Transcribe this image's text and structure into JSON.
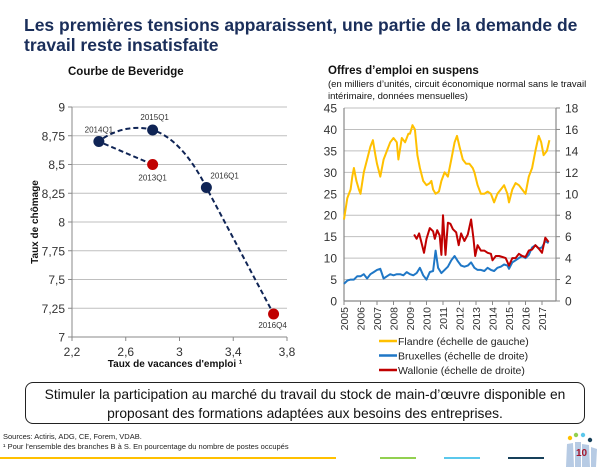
{
  "page": {
    "title": "Les premières tensions apparaissent, une partie de la demande de travail reste insatisfaite",
    "callout": "Stimuler la participation au marché du travail du stock de main-d’œuvre disponible en proposant des formations adaptées aux besoins des entreprises.",
    "sources": "Sources: Actiris, ADG, CE, Forem, VDAB.",
    "footnote": "¹ Pour l’ensemble des branches B à S. En pourcentage du nombre de postes occupés",
    "page_number": "10",
    "colors": {
      "title": "#1a2e5a",
      "accent_yellow": "#ffc000",
      "accent_green": "#92d050",
      "accent_cyan": "#5bc8ec",
      "accent_dark": "#17405a",
      "page_number": "#a3142b"
    }
  },
  "chart_data": [
    {
      "type": "scatter",
      "title": "Courbe de Beveridge",
      "xlabel": "Taux de vacances d'emploi ¹",
      "ylabel": "Taux de chômage",
      "xlim": [
        2.2,
        3.8
      ],
      "ylim": [
        7,
        9
      ],
      "xticks": [
        "2,2",
        "2,6",
        "3",
        "3,4",
        "3,8"
      ],
      "xtick_values": [
        2.2,
        2.6,
        3.0,
        3.4,
        3.8
      ],
      "yticks": [
        "7",
        "7,25",
        "7,5",
        "7,75",
        "8",
        "8,25",
        "8,5",
        "8,75",
        "9"
      ],
      "ytick_values": [
        7,
        7.25,
        7.5,
        7.75,
        8,
        8.25,
        8.5,
        8.75,
        9
      ],
      "grid": "horizontal",
      "connector": "dashed",
      "points": [
        {
          "label": "2013Q1",
          "x": 2.8,
          "y": 8.5,
          "color": "#c00000"
        },
        {
          "label": "2014Q1",
          "x": 2.4,
          "y": 8.7,
          "color": "#0f2455"
        },
        {
          "label": "2015Q1",
          "x": 2.8,
          "y": 8.8,
          "color": "#0f2455"
        },
        {
          "label": "2016Q1",
          "x": 3.2,
          "y": 8.3,
          "color": "#0f2455"
        },
        {
          "label": "2016Q4",
          "x": 3.7,
          "y": 7.2,
          "color": "#c00000"
        }
      ]
    },
    {
      "type": "line",
      "title": "Offres d’emploi en suspens",
      "subtitle": "(en milliers d’unités, circuit économique normal sans le travail intérimaire, données mensuelles)",
      "x_categories": [
        "2005",
        "2006",
        "2007",
        "2008",
        "2009",
        "2010",
        "2011",
        "2012",
        "2013",
        "2014",
        "2015",
        "2016",
        "2017"
      ],
      "xlim": [
        2005,
        2018.2
      ],
      "ylim_left": [
        0,
        45
      ],
      "ylim_right": [
        0,
        18
      ],
      "yticks_left": [
        "0",
        "5",
        "10",
        "15",
        "20",
        "25",
        "30",
        "35",
        "40",
        "45"
      ],
      "yticks_right": [
        "0",
        "2",
        "4",
        "6",
        "8",
        "10",
        "12",
        "14",
        "16",
        "18"
      ],
      "grid": "horizontal",
      "legend_position": "bottom",
      "series": [
        {
          "name": "Flandre (échelle de gauche)",
          "axis": "left",
          "color": "#ffc000",
          "points": [
            [
              2005.0,
              19
            ],
            [
              2005.2,
              24
            ],
            [
              2005.4,
              26
            ],
            [
              2005.5,
              29
            ],
            [
              2005.6,
              31
            ],
            [
              2005.75,
              28
            ],
            [
              2005.9,
              26
            ],
            [
              2006.0,
              25
            ],
            [
              2006.2,
              30
            ],
            [
              2006.4,
              33
            ],
            [
              2006.6,
              36
            ],
            [
              2006.75,
              37.5
            ],
            [
              2006.9,
              34
            ],
            [
              2007.0,
              32
            ],
            [
              2007.2,
              29
            ],
            [
              2007.4,
              33
            ],
            [
              2007.6,
              35
            ],
            [
              2007.8,
              37
            ],
            [
              2008.0,
              38
            ],
            [
              2008.2,
              37
            ],
            [
              2008.3,
              33
            ],
            [
              2008.5,
              38
            ],
            [
              2008.7,
              37
            ],
            [
              2008.9,
              39
            ],
            [
              2009.0,
              39
            ],
            [
              2009.15,
              41
            ],
            [
              2009.3,
              40
            ],
            [
              2009.45,
              34
            ],
            [
              2009.6,
              31
            ],
            [
              2009.8,
              28
            ],
            [
              2010.0,
              27
            ],
            [
              2010.2,
              27.5
            ],
            [
              2010.3,
              28
            ],
            [
              2010.4,
              26
            ],
            [
              2010.55,
              25
            ],
            [
              2010.75,
              25.5
            ],
            [
              2010.9,
              28
            ],
            [
              2011.1,
              30
            ],
            [
              2011.3,
              29
            ],
            [
              2011.5,
              33
            ],
            [
              2011.7,
              37
            ],
            [
              2011.85,
              38.5
            ],
            [
              2012.0,
              36
            ],
            [
              2012.2,
              33
            ],
            [
              2012.4,
              32
            ],
            [
              2012.6,
              32
            ],
            [
              2012.8,
              31
            ],
            [
              2012.9,
              30
            ],
            [
              2013.1,
              27
            ],
            [
              2013.3,
              25
            ],
            [
              2013.5,
              25
            ],
            [
              2013.7,
              25.5
            ],
            [
              2013.9,
              25
            ],
            [
              2014.1,
              23
            ],
            [
              2014.3,
              25
            ],
            [
              2014.5,
              26
            ],
            [
              2014.7,
              27
            ],
            [
              2014.9,
              25
            ],
            [
              2015.0,
              23
            ],
            [
              2015.2,
              26
            ],
            [
              2015.4,
              27.5
            ],
            [
              2015.6,
              27
            ],
            [
              2015.8,
              26
            ],
            [
              2016.0,
              25
            ],
            [
              2016.2,
              29
            ],
            [
              2016.4,
              31
            ],
            [
              2016.6,
              35
            ],
            [
              2016.8,
              38.5
            ],
            [
              2016.95,
              37
            ],
            [
              2017.1,
              34
            ],
            [
              2017.3,
              35
            ],
            [
              2017.45,
              37.5
            ]
          ]
        },
        {
          "name": "Bruxelles (échelle de droite)",
          "axis": "right",
          "color": "#1f77c6",
          "points": [
            [
              2005.0,
              1.6
            ],
            [
              2005.2,
              1.9
            ],
            [
              2005.4,
              2.0
            ],
            [
              2005.6,
              2.0
            ],
            [
              2005.8,
              2.3
            ],
            [
              2006.0,
              2.3
            ],
            [
              2006.2,
              2.5
            ],
            [
              2006.4,
              2.1
            ],
            [
              2006.6,
              2.5
            ],
            [
              2006.8,
              2.7
            ],
            [
              2007.0,
              2.9
            ],
            [
              2007.2,
              3.0
            ],
            [
              2007.4,
              2.1
            ],
            [
              2007.6,
              2.3
            ],
            [
              2007.8,
              2.5
            ],
            [
              2008.0,
              2.4
            ],
            [
              2008.2,
              2.5
            ],
            [
              2008.4,
              2.5
            ],
            [
              2008.6,
              2.4
            ],
            [
              2008.8,
              2.7
            ],
            [
              2009.0,
              2.5
            ],
            [
              2009.2,
              2.4
            ],
            [
              2009.4,
              2.6
            ],
            [
              2009.6,
              3.1
            ],
            [
              2009.8,
              2.4
            ],
            [
              2010.0,
              2.0
            ],
            [
              2010.2,
              2.7
            ],
            [
              2010.4,
              2.8
            ],
            [
              2010.55,
              4.7
            ],
            [
              2010.7,
              3.1
            ],
            [
              2010.9,
              2.6
            ],
            [
              2011.1,
              2.9
            ],
            [
              2011.3,
              3.2
            ],
            [
              2011.5,
              3.8
            ],
            [
              2011.7,
              4.2
            ],
            [
              2011.9,
              3.7
            ],
            [
              2012.1,
              3.3
            ],
            [
              2012.3,
              3.2
            ],
            [
              2012.5,
              3.3
            ],
            [
              2012.7,
              3.6
            ],
            [
              2012.9,
              3.1
            ],
            [
              2013.1,
              2.9
            ],
            [
              2013.3,
              2.9
            ],
            [
              2013.5,
              2.8
            ],
            [
              2013.7,
              3.1
            ],
            [
              2013.9,
              2.9
            ],
            [
              2014.1,
              2.8
            ],
            [
              2014.3,
              3.1
            ],
            [
              2014.5,
              3.2
            ],
            [
              2014.7,
              3.4
            ],
            [
              2014.9,
              3.3
            ],
            [
              2015.0,
              3.0
            ],
            [
              2015.2,
              3.6
            ],
            [
              2015.4,
              3.8
            ],
            [
              2015.6,
              4.0
            ],
            [
              2015.8,
              4.2
            ],
            [
              2016.0,
              4.0
            ],
            [
              2016.2,
              4.3
            ],
            [
              2016.4,
              5.0
            ],
            [
              2016.6,
              5.2
            ],
            [
              2016.8,
              4.9
            ],
            [
              2017.0,
              5.0
            ],
            [
              2017.2,
              5.6
            ],
            [
              2017.4,
              5.4
            ]
          ]
        },
        {
          "name": "Wallonie (échelle de droite)",
          "axis": "right",
          "color": "#c00000",
          "points": [
            [
              2009.25,
              6.2
            ],
            [
              2009.4,
              5.8
            ],
            [
              2009.55,
              6.3
            ],
            [
              2009.7,
              5.4
            ],
            [
              2009.85,
              4.5
            ],
            [
              2010.0,
              5.8
            ],
            [
              2010.2,
              6.8
            ],
            [
              2010.4,
              6.5
            ],
            [
              2010.5,
              5.8
            ],
            [
              2010.65,
              6.6
            ],
            [
              2010.8,
              6.1
            ],
            [
              2010.9,
              4.3
            ],
            [
              2011.0,
              8.0
            ],
            [
              2011.15,
              4.3
            ],
            [
              2011.3,
              7.3
            ],
            [
              2011.45,
              7.2
            ],
            [
              2011.6,
              6.7
            ],
            [
              2011.8,
              6.4
            ],
            [
              2011.95,
              5.2
            ],
            [
              2012.1,
              6.3
            ],
            [
              2012.3,
              5.6
            ],
            [
              2012.5,
              6.2
            ],
            [
              2012.7,
              7.6
            ],
            [
              2012.85,
              5.8
            ],
            [
              2012.95,
              4.2
            ],
            [
              2013.1,
              5.2
            ],
            [
              2013.3,
              4.7
            ],
            [
              2013.5,
              4.7
            ],
            [
              2013.7,
              4.5
            ],
            [
              2013.9,
              4.4
            ],
            [
              2014.0,
              3.8
            ],
            [
              2014.2,
              4.2
            ],
            [
              2014.4,
              4.2
            ],
            [
              2014.6,
              4.1
            ],
            [
              2014.8,
              4.0
            ],
            [
              2015.0,
              3.3
            ],
            [
              2015.2,
              4.0
            ],
            [
              2015.4,
              4.0
            ],
            [
              2015.6,
              4.4
            ],
            [
              2015.8,
              4.2
            ],
            [
              2016.0,
              4.1
            ],
            [
              2016.2,
              4.7
            ],
            [
              2016.4,
              4.8
            ],
            [
              2016.6,
              5.2
            ],
            [
              2016.8,
              4.9
            ],
            [
              2017.0,
              4.5
            ],
            [
              2017.2,
              5.9
            ],
            [
              2017.4,
              5.5
            ]
          ]
        }
      ]
    }
  ]
}
